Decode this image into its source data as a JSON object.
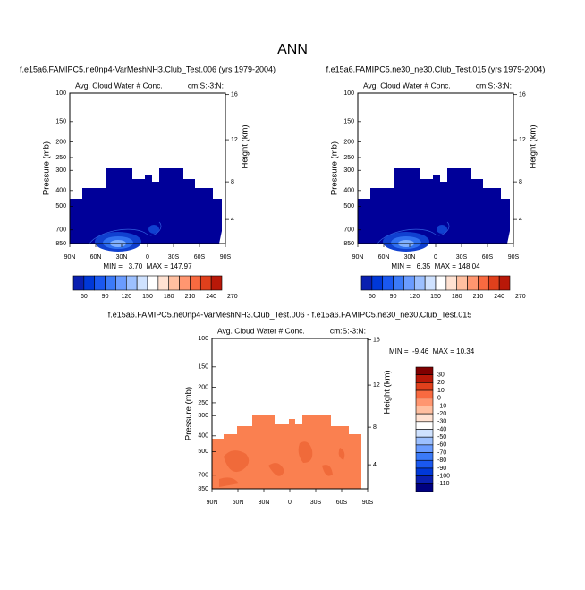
{
  "title": "ANN",
  "panels": [
    {
      "title": "f.e15a6.FAMIPC5.ne0np4-VarMeshNH3.Club_Test.006 (yrs 1979-2004)",
      "subtitle_left": "Avg. Cloud Water # Conc.",
      "subtitle_right": "cm:S:-3:N:",
      "y_left_label": "Pressure (mb)",
      "y_right_label": "Height (km)",
      "y_left_ticks": [
        100,
        150,
        200,
        250,
        300,
        400,
        500,
        700,
        850
      ],
      "y_right_ticks": [
        16,
        12,
        8,
        4
      ],
      "x_ticks": [
        "90N",
        "60N",
        "30N",
        "0",
        "30S",
        "60S",
        "90S"
      ],
      "stats": "MIN =   3.70  MAX = 147.97",
      "colorbar_labels": [
        60,
        90,
        120,
        150,
        180,
        210,
        240,
        270
      ]
    },
    {
      "title": "f.e15a6.FAMIPC5.ne30_ne30.Club_Test.015 (yrs 1979-2004)",
      "subtitle_left": "Avg. Cloud Water # Conc.",
      "subtitle_right": "cm:S:-3:N:",
      "y_left_label": "Pressure (mb)",
      "y_right_label": "Height (km)",
      "y_left_ticks": [
        100,
        150,
        200,
        250,
        300,
        400,
        500,
        700,
        850
      ],
      "y_right_ticks": [
        16,
        12,
        8,
        4
      ],
      "x_ticks": [
        "90N",
        "60N",
        "30N",
        "0",
        "30S",
        "60S",
        "90S"
      ],
      "stats": "MIN =   6.35  MAX = 148.04",
      "colorbar_labels": [
        60,
        90,
        120,
        150,
        180,
        210,
        240,
        270
      ]
    },
    {
      "title": "f.e15a6.FAMIPC5.ne0np4-VarMeshNH3.Club_Test.006 - f.e15a6.FAMIPC5.ne30_ne30.Club_Test.015",
      "subtitle_left": "Avg. Cloud Water # Conc.",
      "subtitle_right": "cm:S:-3:N:",
      "y_left_label": "Pressure (mb)",
      "y_right_label": "Height (km)",
      "y_left_ticks": [
        100,
        150,
        200,
        250,
        300,
        400,
        500,
        700,
        850
      ],
      "y_right_ticks": [
        16,
        12,
        8,
        4
      ],
      "x_ticks": [
        "90N",
        "60N",
        "30N",
        "0",
        "30S",
        "60S",
        "90S"
      ],
      "stats": "MIN =  -9.46  MAX = 10.34",
      "colorbar_labels": [
        30,
        20,
        10,
        0,
        -10,
        -20,
        -30,
        -40,
        -50,
        -60,
        -70,
        -80,
        -90,
        -100,
        -110
      ]
    }
  ]
}
